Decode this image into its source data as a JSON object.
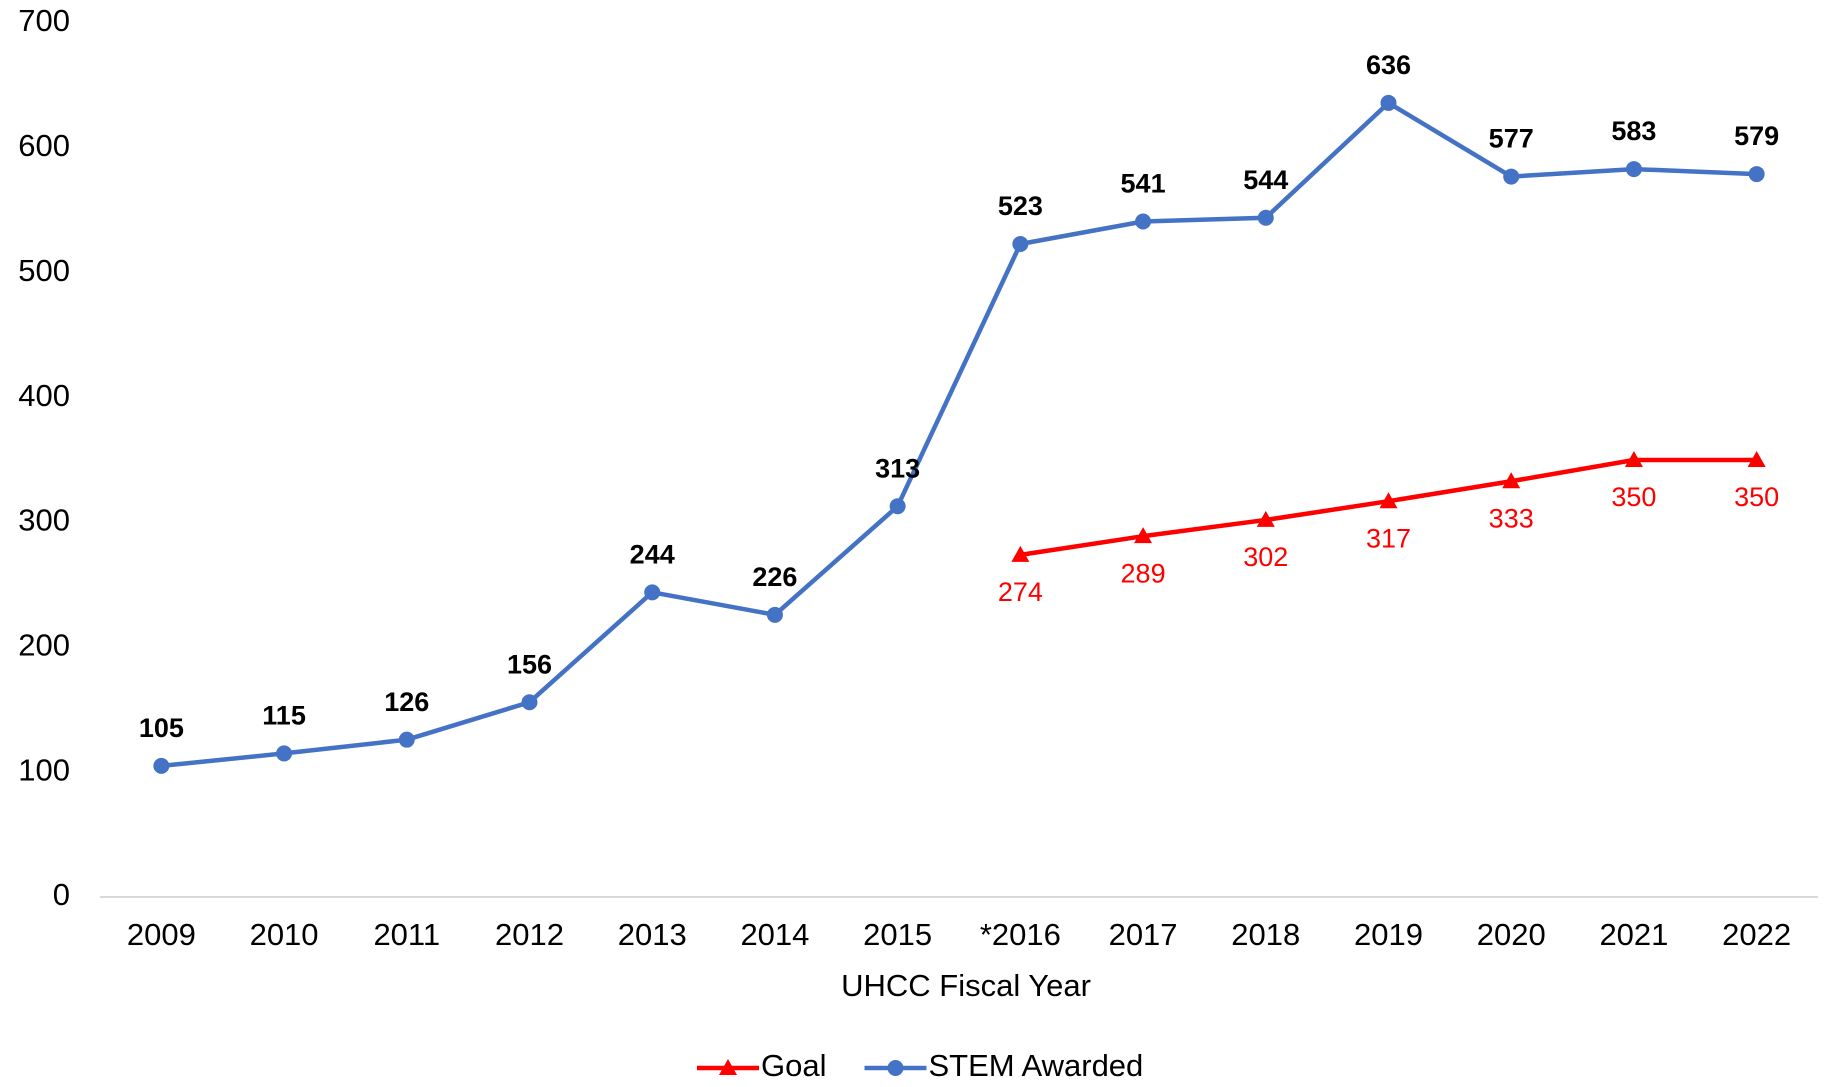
{
  "chart_data": {
    "type": "line",
    "x_label": "UHCC Fiscal Year",
    "categories": [
      "2009",
      "2010",
      "2011",
      "2012",
      "2013",
      "2014",
      "2015",
      "*2016",
      "2017",
      "2018",
      "2019",
      "2020",
      "2021",
      "2022"
    ],
    "series": [
      {
        "name": "Goal",
        "color": "#ff0000",
        "marker": "triangle",
        "values": [
          null,
          null,
          null,
          null,
          null,
          null,
          null,
          274,
          289,
          302,
          317,
          333,
          350,
          350
        ]
      },
      {
        "name": "STEM Awarded",
        "color": "#4472c4",
        "marker": "circle",
        "values": [
          105,
          115,
          126,
          156,
          244,
          226,
          313,
          523,
          541,
          544,
          636,
          577,
          583,
          579
        ]
      }
    ],
    "ylim": [
      0,
      700
    ],
    "yticks": [
      0,
      100,
      200,
      300,
      400,
      500,
      600,
      700
    ],
    "grid": false,
    "legend": "bottom"
  }
}
